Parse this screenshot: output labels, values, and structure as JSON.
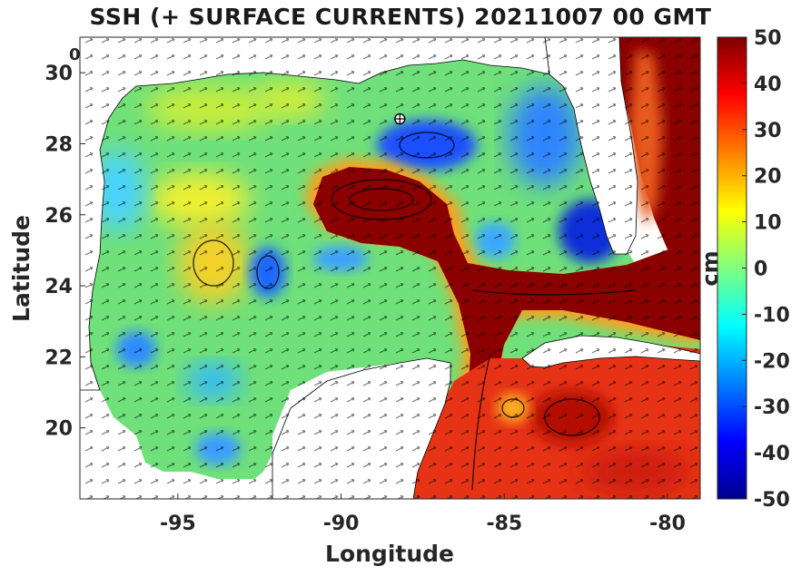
{
  "title": "SSH (+ SURFACE CURRENTS) 20211007 00 GMT",
  "corner_label": "0",
  "axes": {
    "xlabel": "Longitude",
    "ylabel": "Latitude",
    "x_ticks": [
      "-95",
      "-90",
      "-85",
      "-80"
    ],
    "y_ticks": [
      "30",
      "28",
      "26",
      "24",
      "22",
      "20"
    ],
    "xlim": [
      -98,
      -79
    ],
    "ylim": [
      18,
      31
    ]
  },
  "colorbar": {
    "label": "cm",
    "range": [
      -50,
      50
    ],
    "ticks": [
      "50",
      "40",
      "30",
      "20",
      "10",
      "0",
      "-10",
      "-20",
      "-30",
      "-40",
      "-50"
    ],
    "colormap": "jet"
  },
  "marker": {
    "type": "station",
    "lon": -88.2,
    "lat": 28.7
  },
  "colors": {
    "land": "#ffffff",
    "current_arrows": "#000000",
    "loop_current": "#8b0000",
    "caribbean": "#e23a15",
    "basin": "#6fe07a",
    "cyclonic_eddy": "#1f4fff"
  }
}
